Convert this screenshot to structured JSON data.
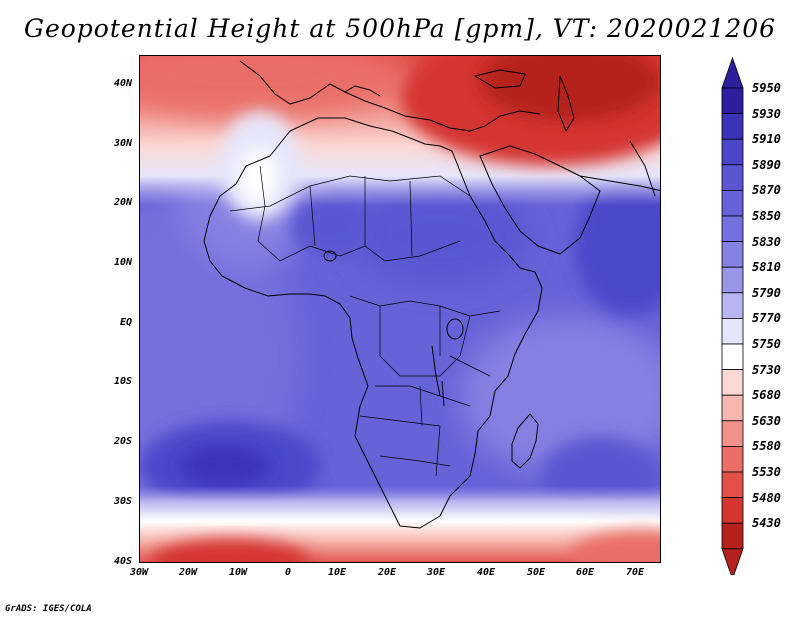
{
  "title": "Geopotential Height at 500hPa [gpm], VT: 2020021206",
  "latitude_labels": [
    "40N",
    "30N",
    "20N",
    "10N",
    "EQ",
    "10S",
    "20S",
    "30S",
    "40S"
  ],
  "longitude_labels": [
    "30W",
    "20W",
    "10W",
    "0",
    "10E",
    "20E",
    "30E",
    "40E",
    "50E",
    "60E",
    "70E"
  ],
  "legend": {
    "levels": [
      "5950",
      "5930",
      "5910",
      "5890",
      "5870",
      "5850",
      "5830",
      "5810",
      "5790",
      "5770",
      "5750",
      "5730",
      "5680",
      "5630",
      "5580",
      "5530",
      "5480",
      "5430"
    ],
    "colors": [
      "#2b1f9e",
      "#3a33b8",
      "#4b46c9",
      "#5a56d2",
      "#6662d8",
      "#7470dd",
      "#8581e2",
      "#9995e8",
      "#b8b6f0",
      "#e6e6fa",
      "#ffffff",
      "#fbd9d6",
      "#f6b7b0",
      "#f0928b",
      "#ea6e67",
      "#e25049",
      "#d43531",
      "#b5211d"
    ],
    "top_arrow_color": "#2b1f9e",
    "bottom_arrow_color": "#b5211d"
  },
  "footer": "GrADS: IGES/COLA"
}
